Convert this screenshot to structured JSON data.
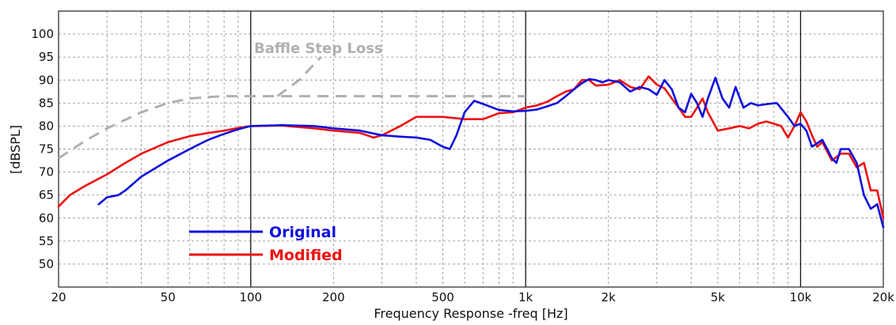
{
  "chart_data": {
    "type": "line",
    "xlabel": "Frequency Response -freq [Hz]",
    "ylabel": "[dBSPL]",
    "xscale": "log",
    "xlim": [
      20,
      20000
    ],
    "ylim": [
      45,
      105
    ],
    "grid": true,
    "legend_placement": "bottom-left",
    "x_ticks": [
      {
        "value": 20,
        "label": "20"
      },
      {
        "value": 50,
        "label": "50"
      },
      {
        "value": 100,
        "label": "100"
      },
      {
        "value": 200,
        "label": "200"
      },
      {
        "value": 500,
        "label": "500"
      },
      {
        "value": 1000,
        "label": "1k"
      },
      {
        "value": 2000,
        "label": "2k"
      },
      {
        "value": 5000,
        "label": "5k"
      },
      {
        "value": 10000,
        "label": "10k"
      },
      {
        "value": 20000,
        "label": "20k"
      }
    ],
    "y_ticks": [
      50,
      55,
      60,
      65,
      70,
      75,
      80,
      85,
      90,
      95,
      100
    ],
    "annotation": {
      "text": "Baffle Step Loss",
      "color": "#b0b0b0"
    },
    "series": [
      {
        "name": "Original",
        "color": "#1010dd",
        "points": [
          [
            28,
            63
          ],
          [
            30,
            64.5
          ],
          [
            33,
            65
          ],
          [
            35,
            66
          ],
          [
            40,
            69
          ],
          [
            50,
            72.5
          ],
          [
            60,
            75
          ],
          [
            70,
            77
          ],
          [
            80,
            78.3
          ],
          [
            90,
            79.3
          ],
          [
            100,
            80
          ],
          [
            130,
            80.2
          ],
          [
            170,
            80
          ],
          [
            200,
            79.5
          ],
          [
            250,
            79
          ],
          [
            300,
            78
          ],
          [
            350,
            77.7
          ],
          [
            400,
            77.5
          ],
          [
            450,
            77
          ],
          [
            500,
            75.5
          ],
          [
            530,
            75
          ],
          [
            560,
            78
          ],
          [
            600,
            83
          ],
          [
            650,
            85.5
          ],
          [
            700,
            84.8
          ],
          [
            800,
            83.5
          ],
          [
            900,
            83.2
          ],
          [
            1000,
            83.3
          ],
          [
            1100,
            83.6
          ],
          [
            1200,
            84.3
          ],
          [
            1300,
            85
          ],
          [
            1400,
            86.5
          ],
          [
            1500,
            88
          ],
          [
            1600,
            89.3
          ],
          [
            1700,
            90.2
          ],
          [
            1800,
            90
          ],
          [
            1900,
            89.5
          ],
          [
            2000,
            90
          ],
          [
            2200,
            89.5
          ],
          [
            2400,
            87.5
          ],
          [
            2600,
            88.5
          ],
          [
            2800,
            88
          ],
          [
            3000,
            86.8
          ],
          [
            3200,
            90
          ],
          [
            3400,
            88
          ],
          [
            3600,
            84
          ],
          [
            3800,
            83
          ],
          [
            4000,
            87
          ],
          [
            4200,
            85
          ],
          [
            4400,
            82
          ],
          [
            4600,
            86
          ],
          [
            4900,
            90.5
          ],
          [
            5200,
            86
          ],
          [
            5500,
            84
          ],
          [
            5800,
            88.5
          ],
          [
            6200,
            84
          ],
          [
            6600,
            85
          ],
          [
            7000,
            84.5
          ],
          [
            7600,
            84.8
          ],
          [
            8200,
            85
          ],
          [
            9000,
            82
          ],
          [
            9500,
            80
          ],
          [
            10000,
            80.5
          ],
          [
            10500,
            79
          ],
          [
            11000,
            75.5
          ],
          [
            12000,
            77
          ],
          [
            13000,
            73
          ],
          [
            13500,
            72
          ],
          [
            14000,
            75
          ],
          [
            15000,
            75
          ],
          [
            16000,
            72
          ],
          [
            17000,
            65
          ],
          [
            18000,
            62
          ],
          [
            19000,
            63
          ],
          [
            20000,
            58
          ]
        ]
      },
      {
        "name": "Modified",
        "color": "#ee1111",
        "points": [
          [
            20,
            62.5
          ],
          [
            22,
            65
          ],
          [
            25,
            67
          ],
          [
            30,
            69.5
          ],
          [
            35,
            72
          ],
          [
            40,
            74
          ],
          [
            50,
            76.5
          ],
          [
            60,
            77.8
          ],
          [
            70,
            78.5
          ],
          [
            80,
            79
          ],
          [
            90,
            79.6
          ],
          [
            100,
            80
          ],
          [
            130,
            80.1
          ],
          [
            170,
            79.5
          ],
          [
            200,
            79
          ],
          [
            250,
            78.5
          ],
          [
            280,
            77.5
          ],
          [
            300,
            78
          ],
          [
            350,
            80
          ],
          [
            400,
            82
          ],
          [
            500,
            82
          ],
          [
            600,
            81.5
          ],
          [
            700,
            81.5
          ],
          [
            800,
            82.8
          ],
          [
            900,
            83
          ],
          [
            1000,
            84
          ],
          [
            1100,
            84.5
          ],
          [
            1200,
            85.3
          ],
          [
            1300,
            86.5
          ],
          [
            1400,
            87.5
          ],
          [
            1500,
            88
          ],
          [
            1600,
            90
          ],
          [
            1700,
            90
          ],
          [
            1800,
            88.8
          ],
          [
            2000,
            89
          ],
          [
            2200,
            90
          ],
          [
            2400,
            88.5
          ],
          [
            2600,
            88
          ],
          [
            2800,
            90.8
          ],
          [
            3000,
            89
          ],
          [
            3200,
            88.2
          ],
          [
            3400,
            86
          ],
          [
            3600,
            84
          ],
          [
            3800,
            82
          ],
          [
            4000,
            82
          ],
          [
            4200,
            84
          ],
          [
            4400,
            86
          ],
          [
            4600,
            83
          ],
          [
            5000,
            79
          ],
          [
            5500,
            79.5
          ],
          [
            6000,
            80
          ],
          [
            6500,
            79.5
          ],
          [
            7000,
            80.5
          ],
          [
            7500,
            81
          ],
          [
            8000,
            80.5
          ],
          [
            8500,
            80
          ],
          [
            9000,
            77.5
          ],
          [
            9500,
            80
          ],
          [
            10000,
            83
          ],
          [
            10500,
            81
          ],
          [
            11000,
            78
          ],
          [
            11500,
            75.5
          ],
          [
            12000,
            76.5
          ],
          [
            13000,
            72.5
          ],
          [
            14000,
            74
          ],
          [
            15000,
            74
          ],
          [
            16000,
            71
          ],
          [
            17000,
            72
          ],
          [
            18000,
            66
          ],
          [
            19000,
            66
          ],
          [
            20000,
            60
          ]
        ]
      },
      {
        "name": "Baffle Step Loss",
        "color": "#b0b0b0",
        "dashed": true,
        "points": [
          [
            20,
            73
          ],
          [
            25,
            76.8
          ],
          [
            30,
            79.5
          ],
          [
            40,
            83
          ],
          [
            50,
            85
          ],
          [
            60,
            86
          ],
          [
            70,
            86.3
          ],
          [
            80,
            86.5
          ],
          [
            100,
            86.5
          ],
          [
            200,
            86.5
          ],
          [
            500,
            86.5
          ],
          [
            1000,
            86.5
          ]
        ]
      },
      {
        "name": "Baffle Step Loss arrow",
        "color": "#b0b0b0",
        "dashed": true,
        "points": [
          [
            125,
            86.5
          ],
          [
            150,
            90
          ],
          [
            180,
            95
          ]
        ]
      }
    ]
  }
}
